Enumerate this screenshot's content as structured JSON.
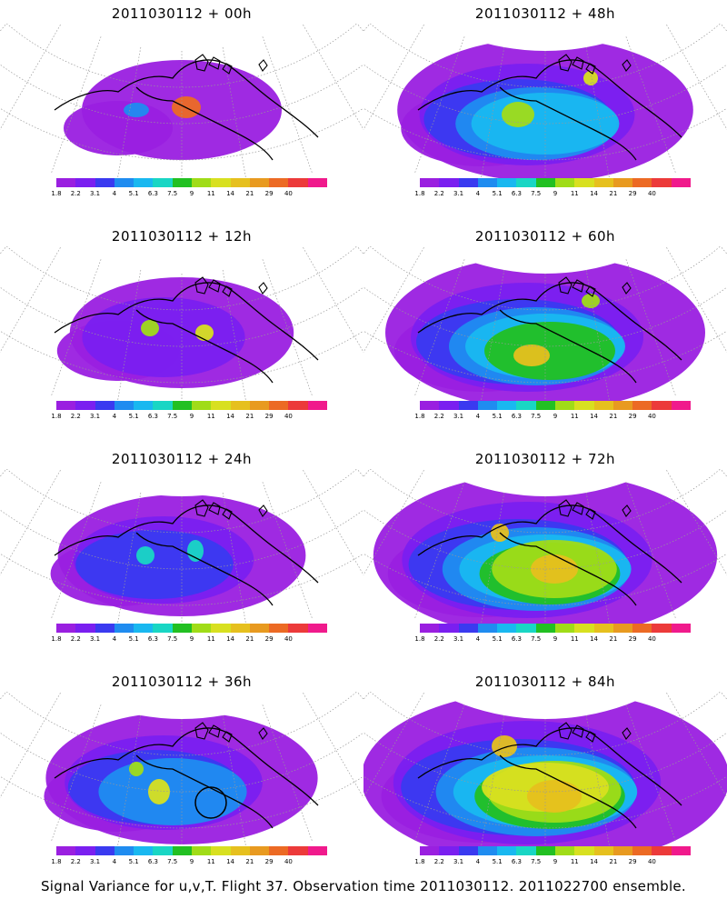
{
  "panels": [
    {
      "title": "2011030112 + 00h",
      "stage": 0
    },
    {
      "title": "2011030112 + 48h",
      "stage": 4
    },
    {
      "title": "2011030112 + 12h",
      "stage": 1
    },
    {
      "title": "2011030112 + 60h",
      "stage": 5
    },
    {
      "title": "2011030112 + 24h",
      "stage": 2
    },
    {
      "title": "2011030112 + 72h",
      "stage": 6
    },
    {
      "title": "2011030112 + 36h",
      "stage": 3
    },
    {
      "title": "2011030112 + 84h",
      "stage": 7
    }
  ],
  "colorbar": {
    "colors": [
      "#9a1fe0",
      "#7a1ff0",
      "#3a3af0",
      "#1f8cf0",
      "#19b8f0",
      "#19d6c4",
      "#22c022",
      "#a0dc18",
      "#d8e020",
      "#e6c01e",
      "#e89a20",
      "#ec6a24",
      "#ec3a3a",
      "#f01a8c"
    ],
    "tick_labels": [
      "1.8",
      "2.2",
      "3.1",
      "4",
      "5.1",
      "6.3",
      "7.5",
      "9",
      "11",
      "14",
      "21",
      "29",
      "40"
    ]
  },
  "footer": "Signal Variance for u,v,T. Flight 37. Observation time 2011030112. 2011022700 ensemble."
}
